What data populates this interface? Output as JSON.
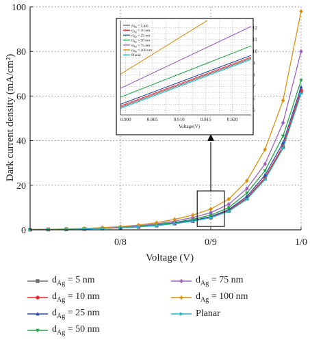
{
  "chart_data": {
    "type": "line",
    "xlabel": "Voltage (V)",
    "ylabel": "Dark current density (mA/cm²)",
    "x_ticks": [
      {
        "value": 0.8,
        "label": "0/8"
      },
      {
        "value": 0.9,
        "label": "0/9"
      },
      {
        "value": 1.0,
        "label": "1/0"
      }
    ],
    "y_ticks": [
      0,
      20,
      40,
      60,
      80,
      100
    ],
    "xlim": [
      0.7,
      1.0
    ],
    "ylim": [
      0,
      100
    ],
    "grid": true,
    "legend_position": "below",
    "x": [
      0.7,
      0.72,
      0.74,
      0.76,
      0.78,
      0.8,
      0.82,
      0.84,
      0.86,
      0.88,
      0.9,
      0.92,
      0.94,
      0.96,
      0.98,
      1.0
    ],
    "series": [
      {
        "name": "dAg = 5 nm",
        "sub": "Ag",
        "label_pre": "d",
        "label_post": " = 5 nm",
        "color": "#6d6d6d",
        "marker": "square",
        "values": [
          0.1,
          0.15,
          0.25,
          0.4,
          0.6,
          0.9,
          1.3,
          1.9,
          2.8,
          3.9,
          5.5,
          8.5,
          14,
          23,
          37,
          62
        ]
      },
      {
        "name": "dAg = 10 nm",
        "sub": "Ag",
        "label_pre": "d",
        "label_post": " = 10 nm",
        "color": "#e8272a",
        "marker": "circle",
        "values": [
          0.1,
          0.15,
          0.26,
          0.41,
          0.62,
          0.92,
          1.33,
          1.95,
          2.85,
          4.0,
          5.6,
          8.7,
          14.3,
          23.4,
          37.5,
          62.5
        ]
      },
      {
        "name": "dAg = 25 nm",
        "sub": "Ag",
        "label_pre": "d",
        "label_post": " = 25 nm",
        "color": "#2c4ba8",
        "marker": "triangle-up",
        "values": [
          0.1,
          0.16,
          0.27,
          0.43,
          0.65,
          0.96,
          1.4,
          2.05,
          3.0,
          4.2,
          5.9,
          9.1,
          15,
          24.5,
          39,
          64
        ]
      },
      {
        "name": "dAg = 50 nm",
        "sub": "Ag",
        "label_pre": "d",
        "label_post": " = 50 nm",
        "color": "#22a34a",
        "marker": "triangle-down",
        "values": [
          0.11,
          0.18,
          0.3,
          0.48,
          0.72,
          1.05,
          1.55,
          2.3,
          3.35,
          4.7,
          6.6,
          10,
          16.5,
          26.5,
          42,
          67
        ]
      },
      {
        "name": "dAg = 75 nm",
        "sub": "Ag",
        "label_pre": "d",
        "label_post": " = 75 nm",
        "color": "#9b5fc0",
        "marker": "diamond",
        "values": [
          0.12,
          0.2,
          0.34,
          0.55,
          0.83,
          1.22,
          1.8,
          2.65,
          3.9,
          5.5,
          7.7,
          11.5,
          18.5,
          29.5,
          48,
          80
        ]
      },
      {
        "name": "dAg = 100 nm",
        "sub": "Ag",
        "label_pre": "d",
        "label_post": " = 100 nm",
        "color": "#d4920e",
        "marker": "diamond",
        "values": [
          0.14,
          0.24,
          0.4,
          0.65,
          1.0,
          1.45,
          2.15,
          3.2,
          4.7,
          6.6,
          9.3,
          13.8,
          22,
          36,
          58,
          98
        ]
      },
      {
        "name": "Planar",
        "sub": "",
        "label_pre": "Planar",
        "label_post": "",
        "color": "#29b8c9",
        "marker": "triangle-right",
        "values": [
          0.1,
          0.15,
          0.25,
          0.39,
          0.59,
          0.88,
          1.28,
          1.87,
          2.75,
          3.85,
          5.4,
          8.3,
          13.7,
          22.5,
          36.5,
          61
        ]
      }
    ],
    "zoom_box": {
      "x": [
        0.885,
        0.915
      ],
      "y": [
        1.5,
        15
      ]
    },
    "inset": {
      "xlabel": "Voltage(V)",
      "xlim": [
        0.899,
        0.9235
      ],
      "ylim": [
        4.6,
        12.6
      ],
      "x_ticks": [
        {
          "value": 0.9,
          "label": "0.900"
        },
        {
          "value": 0.905,
          "label": "0.905"
        },
        {
          "value": 0.91,
          "label": "0.910"
        },
        {
          "value": 0.915,
          "label": "0.915"
        },
        {
          "value": 0.92,
          "label": "0.920"
        }
      ],
      "y_ticks": [
        5,
        6,
        7,
        8,
        9,
        10,
        11,
        12
      ],
      "lines": [
        {
          "name": "dAg = 5 nm",
          "label_pre": "d",
          "sub": "Ag",
          "label_post": " = 5 nm",
          "color": "#6d6d6d",
          "y0": 5.25,
          "y1": 9.4
        },
        {
          "name": "dAg = 10 nm",
          "label_pre": "d",
          "sub": "Ag",
          "label_post": " = 10 nm",
          "color": "#e8272a",
          "y0": 5.35,
          "y1": 9.5
        },
        {
          "name": "dAg = 25 nm",
          "label_pre": "d",
          "sub": "Ag",
          "label_post": " = 25 nm",
          "color": "#2c4ba8",
          "y0": 5.5,
          "y1": 9.65
        },
        {
          "name": "dAg = 50 nm",
          "label_pre": "d",
          "sub": "Ag",
          "label_post": " = 50 nm",
          "color": "#22a34a",
          "y0": 6.1,
          "y1": 10.45
        },
        {
          "name": "dAg = 75 nm",
          "label_pre": "d",
          "sub": "Ag",
          "label_post": " = 75 nm",
          "color": "#9b5fc0",
          "y0": 6.85,
          "y1": 12.1
        },
        {
          "name": "dAg = 100 nm",
          "label_pre": "d",
          "sub": "Ag",
          "label_post": " = 100 nm",
          "color": "#d4920e",
          "y0": 8.05,
          "y1": 14.9
        },
        {
          "name": "Planar",
          "label_pre": "Planar",
          "sub": "",
          "label_post": "",
          "color": "#29b8c9",
          "y0": 5.15,
          "y1": 9.3
        }
      ]
    }
  }
}
